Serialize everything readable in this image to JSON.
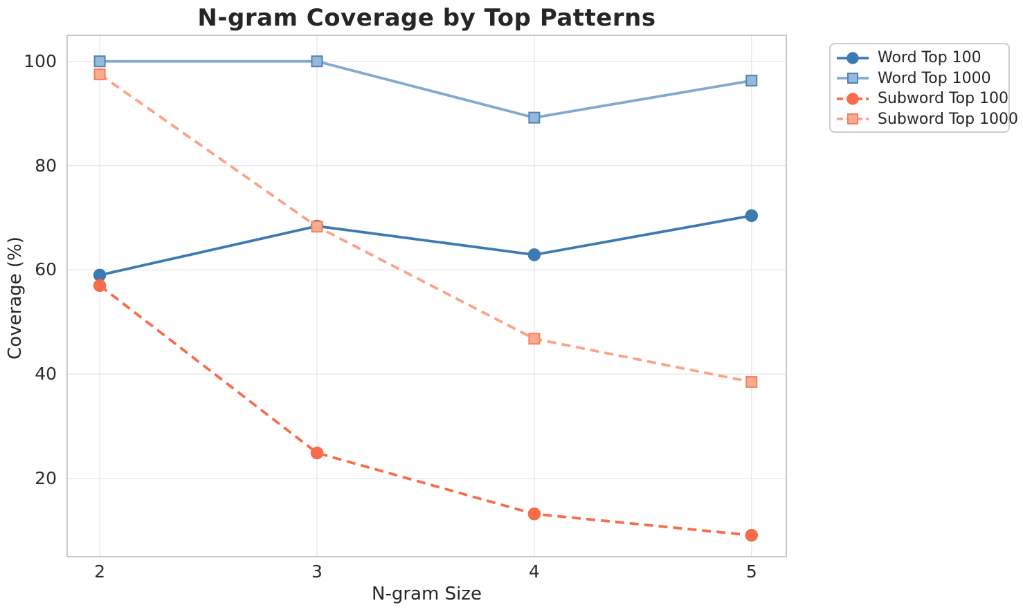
{
  "chart_data": {
    "type": "line",
    "title": "N-gram Coverage by Top Patterns",
    "xlabel": "N-gram Size",
    "ylabel": "Coverage (%)",
    "x": [
      2,
      3,
      4,
      5
    ],
    "xtick_labels": [
      "2",
      "3",
      "4",
      "5"
    ],
    "yticks": [
      20,
      40,
      60,
      80,
      100
    ],
    "ytick_labels": [
      "20",
      "40",
      "60",
      "80",
      "100"
    ],
    "xlim": [
      1.85,
      5.16
    ],
    "ylim": [
      5,
      105
    ],
    "grid": true,
    "legend_position": "outside-top-right",
    "series": [
      {
        "name": "Word Top 100",
        "values": [
          59.0,
          68.4,
          62.9,
          70.4
        ],
        "color": "#3d7ab2",
        "linestyle": "solid",
        "marker": "circle"
      },
      {
        "name": "Word Top 1000",
        "values": [
          100.0,
          100.0,
          89.2,
          96.3
        ],
        "color": "#82a9d0",
        "marker_fill": "#96b8da",
        "marker_edge": "#4e82b8",
        "linestyle": "solid",
        "marker": "square"
      },
      {
        "name": "Subword Top 100",
        "values": [
          57.0,
          24.9,
          13.2,
          9.1
        ],
        "color": "#fa6b4b",
        "linestyle": "dashed",
        "marker": "circle"
      },
      {
        "name": "Subword Top 1000",
        "values": [
          97.5,
          68.3,
          46.8,
          38.5
        ],
        "color": "#fca285",
        "marker_fill": "#fcab8f",
        "marker_edge": "#f97e5b",
        "linestyle": "dashed",
        "marker": "square"
      }
    ],
    "style": {
      "grid_color": "#e8e8ec",
      "spine_color": "#c9c9c9",
      "background": "#ffffff",
      "text_color": "#262626"
    }
  }
}
